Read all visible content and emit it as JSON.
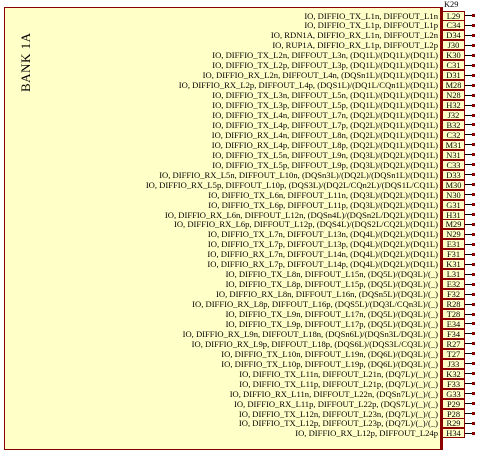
{
  "bank": {
    "title": "BANK 1A"
  },
  "top_pin": "K29",
  "rows": [
    {
      "label": "IO, DIFFIO_TX_L1n, DIFFOUT_L1n",
      "pin": "L29"
    },
    {
      "label": "IO, DIFFIO_TX_L1p, DIFFOUT_L1p",
      "pin": "C34"
    },
    {
      "label": "IO, RDN1A, DIFFIO_RX_L1n, DIFFOUT_L2n",
      "pin": "D34"
    },
    {
      "label": "IO, RUP1A, DIFFIO_RX_L1p, DIFFOUT_L2p",
      "pin": "J30"
    },
    {
      "label": "IO, DIFFIO_TX_L2n, DIFFOUT_L3n, (DQ1L)/(DQ1L)/(DQ1L)",
      "pin": "K30"
    },
    {
      "label": "IO, DIFFIO_TX_L2p, DIFFOUT_L3p, (DQ1L)/(DQ1L)/(DQ1L)",
      "pin": "C31"
    },
    {
      "label": "IO, DIFFIO_RX_L2n, DIFFOUT_L4n, (DQSn1L)/(DQ1L)/(DQ1L)",
      "pin": "D31"
    },
    {
      "label": "IO, DIFFIO_RX_L2p, DIFFOUT_L4p, (DQS1L)/(DQ1L/CQn1L)/(DQ1L)",
      "pin": "M28"
    },
    {
      "label": "IO, DIFFIO_TX_L3n, DIFFOUT_L5n, (DQ1L)/(DQ1L)/(DQ1L)",
      "pin": "N28"
    },
    {
      "label": "IO, DIFFIO_TX_L3p, DIFFOUT_L5p, (DQ1L)/(DQ1L)/(DQ1L)",
      "pin": "H32"
    },
    {
      "label": "IO, DIFFIO_TX_L4n, DIFFOUT_L7n, (DQ2L)/(DQ1L)/(DQ1L)",
      "pin": "J32"
    },
    {
      "label": "IO, DIFFIO_TX_L4p, DIFFOUT_L7p, (DQ2L)/(DQ1L)/(DQ1L)",
      "pin": "B32"
    },
    {
      "label": "IO, DIFFIO_RX_L4n, DIFFOUT_L8n, (DQ2L)/(DQ1L)/(DQ1L)",
      "pin": "C32"
    },
    {
      "label": "IO, DIFFIO_RX_L4p, DIFFOUT_L8p, (DQ2L)/(DQ1L)/(DQ1L)",
      "pin": "M31"
    },
    {
      "label": "IO, DIFFIO_TX_L5n, DIFFOUT_L9n, (DQ3L)/(DQ2L)/(DQ1L)",
      "pin": "N31"
    },
    {
      "label": "IO, DIFFIO_TX_L5p, DIFFOUT_L9p, (DQ3L)/(DQ2L)/(DQ1L)",
      "pin": "C33"
    },
    {
      "label": "IO, DIFFIO_RX_L5n, DIFFOUT_L10n, (DQSn3L)/(DQ2L)/(DQSn1L)/(DQ1L)",
      "pin": "D33"
    },
    {
      "label": "IO, DIFFIO_RX_L5p, DIFFOUT_L10p, (DQS3L)/(DQ2L/CQn2L)/(DQS1L/CQ1L)",
      "pin": "M30"
    },
    {
      "label": "IO, DIFFIO_TX_L6n, DIFFOUT_L11n, (DQ3L)/(DQ2L)/(DQ1L)",
      "pin": "N30"
    },
    {
      "label": "IO, DIFFIO_TX_L6p, DIFFOUT_L11p, (DQ3L)/(DQ2L)/(DQ1L)",
      "pin": "G31"
    },
    {
      "label": "IO, DIFFIO_RX_L6n, DIFFOUT_L12n, (DQSn4L)/(DQSn2L/DQ2L)/(DQ1L)",
      "pin": "H31"
    },
    {
      "label": "IO, DIFFIO_RX_L6p, DIFFOUT_L12p, (DQS4L)/(DQS2L/CQ2L)/(DQ1L)",
      "pin": "M29"
    },
    {
      "label": "IO, DIFFIO_TX_L7n, DIFFOUT_L13n, (DQ4L)/(DQ2L)/(DQ1L)",
      "pin": "N29"
    },
    {
      "label": "IO, DIFFIO_TX_L7p, DIFFOUT_L13p, (DQ4L)/(DQ2L)/(DQ1L)",
      "pin": "E31"
    },
    {
      "label": "IO, DIFFIO_RX_L7n, DIFFOUT_L14n, (DQ4L)/(DQ2L)/(DQ1L)",
      "pin": "F31"
    },
    {
      "label": "IO, DIFFIO_RX_L7p, DIFFOUT_L14p, (DQ4L)/(DQ2L)/(DQ1L)",
      "pin": "K31"
    },
    {
      "label": "IO, DIFFIO_TX_L8n, DIFFOUT_L15n, (DQ5L)/(DQ3L)/(_)",
      "pin": "L31"
    },
    {
      "label": "IO, DIFFIO_TX_L8p, DIFFOUT_L15p, (DQ5L)/(DQ3L)/(_)",
      "pin": "E32"
    },
    {
      "label": "IO, DIFFIO_RX_L8n, DIFFOUT_L16n, (DQSn5L)/(DQ3L)/(_)",
      "pin": "F32"
    },
    {
      "label": "IO, DIFFIO_RX_L8p, DIFFOUT_L16p, (DQS5L)/(DQ3L/CQn3L)/(_)",
      "pin": "R28"
    },
    {
      "label": "IO, DIFFIO_TX_L9n, DIFFOUT_L17n, (DQ5L)/(DQ3L)/(_)",
      "pin": "T28"
    },
    {
      "label": "IO, DIFFIO_TX_L9p, DIFFOUT_L17p, (DQ5L)/(DQ3L)/(_)",
      "pin": "E34"
    },
    {
      "label": "IO, DIFFIO_RX_L9n, DIFFOUT_L18n, (DQSn6L)/(DQSn3L/DQ3L)/(_)",
      "pin": "F34"
    },
    {
      "label": "IO, DIFFIO_RX_L9p, DIFFOUT_L18p, (DQS6L)/(DQS3L/CQ3L)/(_)",
      "pin": "R27"
    },
    {
      "label": "IO, DIFFIO_TX_L10n, DIFFOUT_L19n, (DQ6L)/(DQ3L)/(_)",
      "pin": "T27"
    },
    {
      "label": "IO, DIFFIO_TX_L10p, DIFFOUT_L19p, (DQ6L)/(DQ3L)/(_)",
      "pin": "J33"
    },
    {
      "label": "IO, DIFFIO_TX_L11n, DIFFOUT_L21n, (DQ7L)/(_)/(_)",
      "pin": "K32"
    },
    {
      "label": "IO, DIFFIO_TX_L11p, DIFFOUT_L21p, (DQ7L)/(_)/(_)",
      "pin": "F33"
    },
    {
      "label": "IO, DIFFIO_RX_L11n, DIFFOUT_L22n, (DQSn7L)/(_)/(_)",
      "pin": "G33"
    },
    {
      "label": "IO, DIFFIO_RX_L11p, DIFFOUT_L22p, (DQS7L)/(_)/(_)",
      "pin": "P29"
    },
    {
      "label": "IO, DIFFIO_TX_L12n, DIFFOUT_L23n, (DQ7L)/(_)/(_)",
      "pin": "P28"
    },
    {
      "label": "IO, DIFFIO_TX_L12p, DIFFOUT_L23p, (DQ7L)/(_)/(_)",
      "pin": "R29"
    },
    {
      "label": "IO, DIFFIO_RX_L12p, DIFFOUT_L24p",
      "pin": "H34"
    }
  ]
}
